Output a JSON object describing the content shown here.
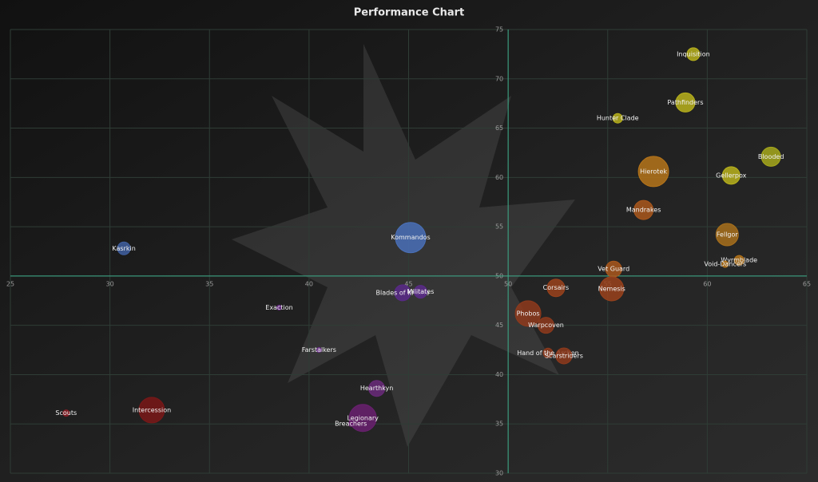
{
  "chart_data": {
    "type": "bubble",
    "title": "Performance Chart",
    "xlim": [
      25,
      65
    ],
    "xticks": [
      25,
      30,
      35,
      40,
      45,
      50,
      55,
      60,
      65
    ],
    "ylim": [
      30,
      75
    ],
    "yticks": [
      30,
      35,
      40,
      45,
      50,
      55,
      60,
      65,
      70,
      75
    ],
    "axis_cross": [
      50,
      50
    ],
    "grid": true,
    "points": [
      {
        "name": "Inquisition",
        "x": 59.3,
        "y": 72.5,
        "size": 8,
        "color": "#b8b21c"
      },
      {
        "name": "Pathfinders",
        "x": 58.9,
        "y": 67.6,
        "size": 12,
        "color": "#b8b21c"
      },
      {
        "name": "Hunter Clade",
        "x": 55.5,
        "y": 66.0,
        "size": 6,
        "color": "#b8b21c"
      },
      {
        "name": "Blooded",
        "x": 63.2,
        "y": 62.1,
        "size": 12,
        "color": "#a6a81c"
      },
      {
        "name": "Hierotek",
        "x": 57.3,
        "y": 60.6,
        "size": 19,
        "color": "#b5741a"
      },
      {
        "name": "Gellerpox",
        "x": 61.2,
        "y": 60.2,
        "size": 11,
        "color": "#b8b21c"
      },
      {
        "name": "Mandrakes",
        "x": 56.8,
        "y": 56.7,
        "size": 12,
        "color": "#a9571c"
      },
      {
        "name": "Fellgor",
        "x": 61.0,
        "y": 54.2,
        "size": 14,
        "color": "#a8701c"
      },
      {
        "name": "Wyrmblade",
        "x": 61.6,
        "y": 51.6,
        "size": 6,
        "color": "#b5741a"
      },
      {
        "name": "Void-Dancers",
        "x": 60.9,
        "y": 51.2,
        "size": 4,
        "color": "#b5741a"
      },
      {
        "name": "Vet Guard",
        "x": 55.3,
        "y": 50.7,
        "size": 10,
        "color": "#a9571c"
      },
      {
        "name": "Corsairs",
        "x": 52.4,
        "y": 48.8,
        "size": 11,
        "color": "#9a421c"
      },
      {
        "name": "Nemesis",
        "x": 55.2,
        "y": 48.7,
        "size": 15,
        "color": "#9a421c"
      },
      {
        "name": "Phobos",
        "x": 51.0,
        "y": 46.2,
        "size": 16,
        "color": "#8e3a1c"
      },
      {
        "name": "Warpcoven",
        "x": 51.9,
        "y": 45.0,
        "size": 10,
        "color": "#8e3a1c"
      },
      {
        "name": "Hand of the Archon",
        "x": 52.0,
        "y": 42.2,
        "size": 6,
        "color": "#8e3a1c"
      },
      {
        "name": "Scarstriders",
        "x": 52.8,
        "y": 41.9,
        "size": 10,
        "color": "#8e3a1c"
      },
      {
        "name": "Kommandos",
        "x": 45.1,
        "y": 53.9,
        "size": 19,
        "color": "#4a70b8"
      },
      {
        "name": "Kasrkin",
        "x": 30.7,
        "y": 52.8,
        "size": 8,
        "color": "#3f5fa0"
      },
      {
        "name": "Blades of Khaine",
        "x": 44.7,
        "y": 48.3,
        "size": 10,
        "color": "#5a2a8a"
      },
      {
        "name": "Militates",
        "x": 45.6,
        "y": 48.4,
        "size": 8,
        "color": "#5a2a8a"
      },
      {
        "name": "Exaction",
        "x": 38.5,
        "y": 46.8,
        "size": 3,
        "color": "#6a2a8a"
      },
      {
        "name": "Farstalkers",
        "x": 40.5,
        "y": 42.5,
        "size": 3,
        "color": "#6a2a8a"
      },
      {
        "name": "Hearthkyn",
        "x": 43.4,
        "y": 38.6,
        "size": 10,
        "color": "#6a2a7a"
      },
      {
        "name": "Legionary",
        "x": 42.7,
        "y": 35.6,
        "size": 17,
        "color": "#6a2070"
      },
      {
        "name": "Breachers",
        "x": 42.1,
        "y": 35.0,
        "size": 3,
        "color": "#6a2070"
      },
      {
        "name": "Scouts",
        "x": 27.8,
        "y": 36.1,
        "size": 4,
        "color": "#8a1c24"
      },
      {
        "name": "Intercession",
        "x": 32.1,
        "y": 36.4,
        "size": 16,
        "color": "#7a1818"
      }
    ]
  }
}
